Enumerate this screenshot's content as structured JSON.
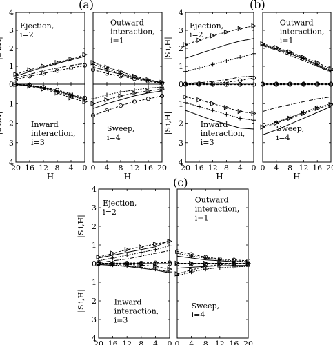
{
  "chart_data": [
    {
      "label": "(a)",
      "type": "line",
      "xlabel": "H",
      "ylabel": "|S_{i,H}|",
      "ylim": [
        0,
        4
      ],
      "xticks": [
        20,
        16,
        12,
        8,
        4,
        0
      ],
      "yticks": [
        0,
        1,
        2,
        3,
        4
      ],
      "quadrants": [
        {
          "title": [
            "Ejection,",
            "i=2"
          ],
          "x": [
            20,
            16,
            12,
            8,
            4,
            0
          ],
          "series": [
            {
              "marker": "triangle",
              "values": [
                0.55,
                0.8,
                1.0,
                1.2,
                1.4,
                1.65
              ]
            },
            {
              "marker": "solid",
              "values": [
                0.45,
                0.7,
                0.95,
                1.15,
                1.35,
                1.55
              ]
            },
            {
              "marker": "dashdot",
              "values": [
                0.35,
                0.55,
                0.75,
                0.9,
                1.05,
                1.15
              ]
            },
            {
              "marker": "circle",
              "values": [
                0.25,
                0.45,
                0.6,
                0.75,
                0.9,
                1.05
              ]
            }
          ]
        },
        {
          "title": [
            "Outward",
            "interaction,",
            "i=1"
          ],
          "x": [
            0,
            4,
            8,
            12,
            16,
            20
          ],
          "series": [
            {
              "marker": "triangle",
              "values": [
                1.2,
                0.95,
                0.7,
                0.45,
                0.25,
                0.1
              ]
            },
            {
              "marker": "plus",
              "values": [
                1.1,
                0.85,
                0.6,
                0.4,
                0.2,
                0.1
              ]
            },
            {
              "marker": "solid",
              "values": [
                0.95,
                0.75,
                0.55,
                0.35,
                0.2,
                0.08
              ]
            },
            {
              "marker": "circle",
              "values": [
                0.8,
                0.6,
                0.45,
                0.3,
                0.15,
                0.05
              ]
            }
          ]
        },
        {
          "title": [
            "Inward",
            "interaction,",
            "i=3"
          ],
          "x": [
            20,
            16,
            12,
            8,
            4,
            0
          ],
          "series": [
            {
              "marker": "triangle",
              "values": [
                0.02,
                0.1,
                0.25,
                0.45,
                0.7,
                0.9
              ]
            },
            {
              "marker": "plus",
              "values": [
                0.02,
                0.08,
                0.2,
                0.4,
                0.6,
                0.8
              ]
            },
            {
              "marker": "solid",
              "values": [
                0.02,
                0.07,
                0.18,
                0.35,
                0.55,
                0.75
              ]
            },
            {
              "marker": "circle",
              "values": [
                0.02,
                0.05,
                0.15,
                0.3,
                0.5,
                0.7
              ]
            }
          ]
        },
        {
          "title": [
            "Sweep,",
            "i=4"
          ],
          "x": [
            0,
            4,
            8,
            12,
            16,
            20
          ],
          "series": [
            {
              "marker": "plus",
              "values": [
                0.75,
                0.55,
                0.4,
                0.3,
                0.2,
                0.15
              ]
            },
            {
              "marker": "triangle",
              "values": [
                1.0,
                0.8,
                0.6,
                0.45,
                0.35,
                0.25
              ]
            },
            {
              "marker": "solid",
              "values": [
                1.25,
                1.0,
                0.8,
                0.6,
                0.45,
                0.35
              ]
            },
            {
              "marker": "circle",
              "values": [
                1.6,
                1.35,
                1.1,
                0.9,
                0.75,
                0.6
              ]
            }
          ]
        }
      ]
    },
    {
      "label": "(b)",
      "type": "line",
      "xlabel": "H",
      "ylabel": "|S_{i,H}|",
      "ylim": [
        0,
        4
      ],
      "xticks": [
        20,
        16,
        12,
        8,
        4,
        0
      ],
      "yticks": [
        0,
        1,
        2,
        3,
        4
      ],
      "quadrants": [
        {
          "title": [
            "Ejection,",
            "i=2"
          ],
          "x": [
            20,
            16,
            12,
            8,
            4,
            0
          ],
          "series": [
            {
              "marker": "triangle",
              "values": [
                2.2,
                2.45,
                2.7,
                2.9,
                3.1,
                3.25
              ]
            },
            {
              "marker": "solid",
              "values": [
                1.45,
                1.7,
                1.95,
                2.2,
                2.4,
                2.55
              ]
            },
            {
              "marker": "plus",
              "values": [
                0.7,
                0.9,
                1.1,
                1.3,
                1.5,
                1.7
              ]
            },
            {
              "marker": "dashdot",
              "values": [
                0.05,
                0.08,
                0.15,
                0.25,
                0.4,
                0.45
              ]
            },
            {
              "marker": "circle",
              "values": [
                0.02,
                0.03,
                0.05,
                0.1,
                0.2,
                0.35
              ]
            }
          ]
        },
        {
          "title": [
            "Outward",
            "interaction,",
            "i=1"
          ],
          "x": [
            0,
            4,
            8,
            12,
            16,
            20
          ],
          "series": [
            {
              "marker": "triangle",
              "values": [
                2.25,
                2.05,
                1.8,
                1.5,
                1.2,
                0.85
              ]
            },
            {
              "marker": "plus",
              "values": [
                2.2,
                2.0,
                1.75,
                1.45,
                1.1,
                0.75
              ]
            },
            {
              "marker": "solid",
              "values": [
                2.2,
                1.95,
                1.7,
                1.4,
                1.05,
                0.7
              ]
            },
            {
              "marker": "dashdot",
              "values": [
                2.15,
                1.9,
                1.6,
                1.3,
                1.0,
                0.65
              ]
            },
            {
              "marker": "circle",
              "values": [
                0.02,
                0.02,
                0.02,
                0.02,
                0.02,
                0.02
              ]
            }
          ]
        },
        {
          "title": [
            "Inward",
            "interaction,",
            "i=3"
          ],
          "x": [
            20,
            16,
            12,
            8,
            4,
            0
          ],
          "series": [
            {
              "marker": "triangle",
              "values": [
                0.65,
                0.8,
                1.0,
                1.2,
                1.4,
                1.5
              ]
            },
            {
              "marker": "plus",
              "values": [
                0.95,
                1.15,
                1.35,
                1.55,
                1.75,
                1.85
              ]
            },
            {
              "marker": "solid",
              "values": [
                1.35,
                1.6,
                1.85,
                2.05,
                2.25,
                2.3
              ]
            },
            {
              "marker": "circle",
              "values": [
                0.02,
                0.02,
                0.02,
                0.02,
                0.02,
                0.02
              ]
            }
          ]
        },
        {
          "title": [
            "Sweep,",
            "i=4"
          ],
          "x": [
            0,
            4,
            8,
            12,
            16,
            20
          ],
          "series": [
            {
              "marker": "dashdot",
              "values": [
                1.4,
                1.2,
                1.05,
                0.9,
                0.75,
                0.65
              ]
            },
            {
              "marker": "plus",
              "values": [
                2.15,
                1.95,
                1.7,
                1.45,
                1.2,
                1.0
              ]
            },
            {
              "marker": "triangle",
              "values": [
                2.2,
                2.0,
                1.75,
                1.5,
                1.25,
                1.05
              ]
            },
            {
              "marker": "solid",
              "values": [
                2.6,
                2.35,
                2.05,
                1.75,
                1.45,
                1.15
              ]
            },
            {
              "marker": "circle",
              "values": [
                0.02,
                0.02,
                0.02,
                0.02,
                0.02,
                0.02
              ]
            }
          ]
        }
      ]
    },
    {
      "label": "(c)",
      "type": "line",
      "xlabel": "H",
      "ylabel": "|S_{i,H}|",
      "ylim": [
        0,
        4
      ],
      "xticks": [
        20,
        16,
        12,
        8,
        4,
        0
      ],
      "yticks": [
        0,
        1,
        2,
        3,
        4
      ],
      "quadrants": [
        {
          "title": [
            "Ejection,",
            "i=2"
          ],
          "x": [
            20,
            16,
            12,
            8,
            4,
            0
          ],
          "series": [
            {
              "marker": "triangle",
              "values": [
                0.35,
                0.55,
                0.75,
                0.9,
                1.05,
                1.2
              ]
            },
            {
              "marker": "solid",
              "values": [
                0.3,
                0.45,
                0.6,
                0.75,
                0.9,
                1.25
              ]
            },
            {
              "marker": "plus",
              "values": [
                0.15,
                0.3,
                0.45,
                0.6,
                0.75,
                0.95
              ]
            },
            {
              "marker": "dashdot",
              "values": [
                0.05,
                0.15,
                0.25,
                0.4,
                0.55,
                0.7
              ]
            },
            {
              "marker": "circle",
              "values": [
                0.02,
                0.02,
                0.03,
                0.04,
                0.05,
                0.06
              ]
            }
          ]
        },
        {
          "title": [
            "Outward",
            "interaction,",
            "i=1"
          ],
          "x": [
            0,
            4,
            8,
            12,
            16,
            20
          ],
          "series": [
            {
              "marker": "circle",
              "values": [
                0.65,
                0.5,
                0.35,
                0.25,
                0.2,
                0.15
              ]
            },
            {
              "marker": "plus",
              "values": [
                0.55,
                0.4,
                0.3,
                0.2,
                0.15,
                0.1
              ]
            },
            {
              "marker": "solid",
              "values": [
                0.4,
                0.3,
                0.2,
                0.15,
                0.1,
                0.08
              ]
            },
            {
              "marker": "triangle",
              "values": [
                0.02,
                0.02,
                0.02,
                0.02,
                0.02,
                0.02
              ]
            }
          ]
        },
        {
          "title": [
            "Inward",
            "interaction,",
            "i=3"
          ],
          "x": [
            20,
            16,
            12,
            8,
            4,
            0
          ],
          "series": [
            {
              "marker": "triangle",
              "values": [
                0.02,
                0.03,
                0.05,
                0.08,
                0.15,
                0.3
              ]
            },
            {
              "marker": "plus",
              "values": [
                0.05,
                0.08,
                0.12,
                0.2,
                0.3,
                0.45
              ]
            },
            {
              "marker": "solid",
              "values": [
                0.05,
                0.1,
                0.15,
                0.25,
                0.35,
                0.5
              ]
            },
            {
              "marker": "circle",
              "values": [
                0.02,
                0.02,
                0.02,
                0.02,
                0.02,
                0.02
              ]
            }
          ]
        },
        {
          "title": [
            "Sweep,",
            "i=4"
          ],
          "x": [
            0,
            4,
            8,
            12,
            16,
            20
          ],
          "series": [
            {
              "marker": "plus",
              "values": [
                0.65,
                0.45,
                0.3,
                0.22,
                0.18,
                0.15
              ]
            },
            {
              "marker": "triangle",
              "values": [
                0.55,
                0.35,
                0.15,
                0.05,
                0.02,
                0.02
              ]
            },
            {
              "marker": "solid",
              "values": [
                0.25,
                0.2,
                0.15,
                0.12,
                0.1,
                0.1
              ]
            },
            {
              "marker": "circle",
              "values": [
                0.02,
                0.02,
                0.02,
                0.02,
                0.02,
                0.02
              ]
            }
          ]
        }
      ]
    }
  ]
}
